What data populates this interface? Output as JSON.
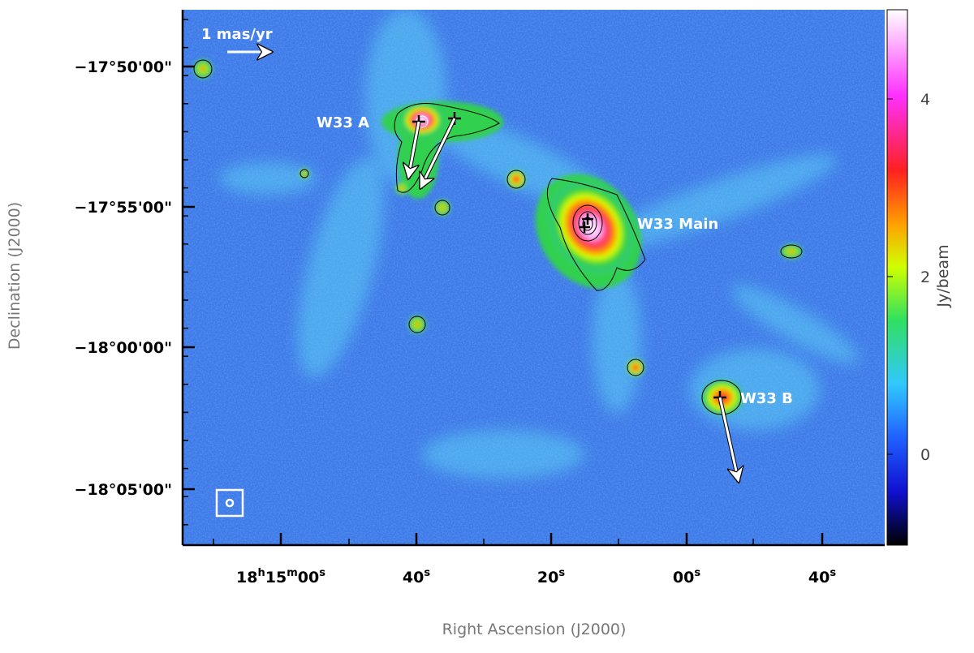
{
  "annotations": {
    "scale_bar": "1 mas/yr",
    "w33a": "W33 A",
    "w33main": "W33 Main",
    "w33b": "W33 B"
  },
  "axes": {
    "x_label": "Right Ascension (J2000)",
    "y_label": "Declination (J2000)",
    "x_ticks": [
      [
        "18",
        "h",
        "15",
        "m",
        "00",
        "s"
      ],
      [
        "40",
        "s"
      ],
      [
        "20",
        "s"
      ],
      [
        "00",
        "s"
      ],
      [
        "40",
        "s"
      ]
    ],
    "y_ticks": [
      "−17°50'00\"",
      "−17°55'00\"",
      "−18°00'00\"",
      "−18°05'00\""
    ]
  },
  "colorbar": {
    "label": "Jy/beam",
    "ticks": [
      "0",
      "2",
      "4"
    ]
  }
}
